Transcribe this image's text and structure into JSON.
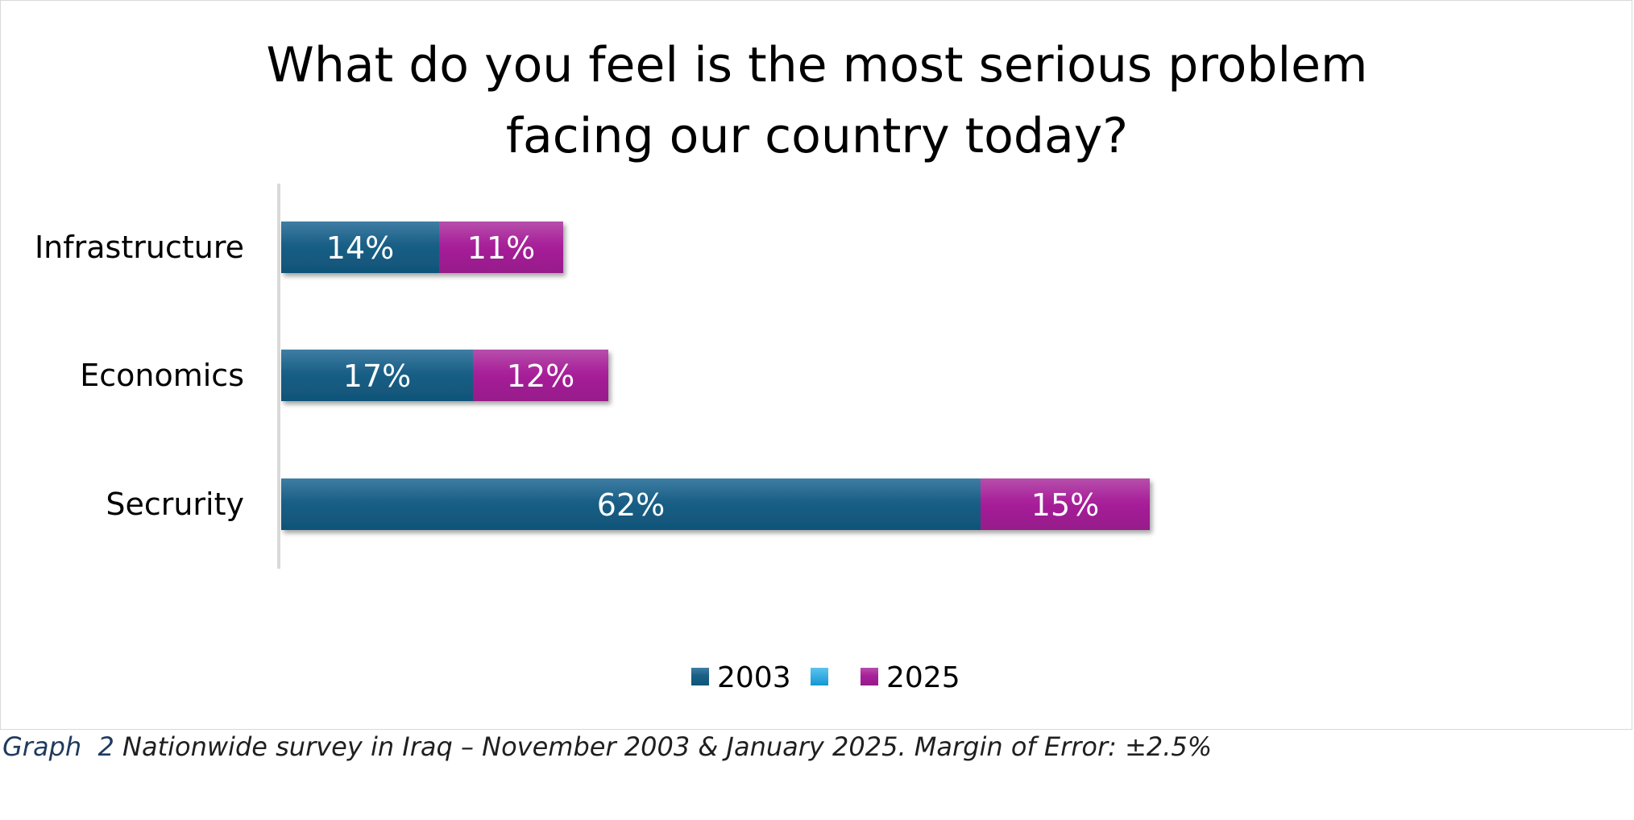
{
  "chart_data": {
    "type": "bar",
    "orientation": "horizontal",
    "stacked": true,
    "title": "What do you feel is the most serious problem facing our country today?",
    "title_lines": [
      "What do you feel is the most serious problem",
      "facing our country today?"
    ],
    "categories": [
      "Infrastructure",
      "Economics",
      "Secrurity"
    ],
    "series": [
      {
        "name": "2003",
        "values": [
          14,
          17,
          62
        ],
        "color": "#1a5f86"
      },
      {
        "name": "",
        "values": [
          0,
          0,
          0
        ],
        "color": "#29a9e1"
      },
      {
        "name": "2025",
        "values": [
          11,
          12,
          15
        ],
        "color": "#a8209a"
      }
    ],
    "value_suffix": "%",
    "xlim": [
      0,
      80
    ],
    "grid": false,
    "legend": "bottom",
    "xlabel": "",
    "ylabel": ""
  },
  "caption": {
    "label": "Graph",
    "number": "2",
    "text": "Nationwide survey in Iraq – November 2003 & January 2025. Margin of Error: ±2.5%"
  }
}
